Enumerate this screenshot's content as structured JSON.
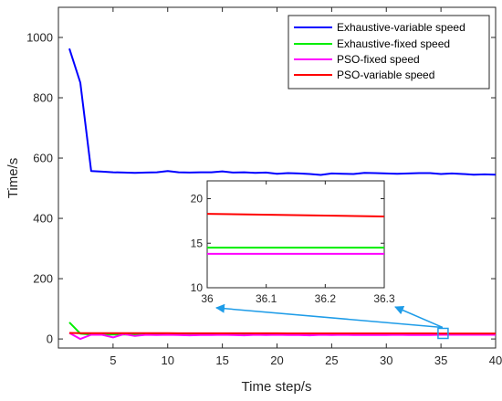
{
  "chart_data": {
    "type": "line",
    "title": "",
    "xlabel": "Time step/s",
    "ylabel": "Time/s",
    "xlim": [
      0,
      40
    ],
    "ylim": [
      -30,
      1100
    ],
    "xticks": [
      5,
      10,
      15,
      20,
      25,
      30,
      35,
      40
    ],
    "yticks": [
      0,
      200,
      400,
      600,
      800,
      1000
    ],
    "grid": false,
    "legend_position": "top-right",
    "series": [
      {
        "name": "Exhaustive-variable speed",
        "color": "#0000ff",
        "x": [
          1,
          2,
          3,
          4,
          5,
          6,
          7,
          8,
          9,
          10,
          11,
          12,
          13,
          14,
          15,
          16,
          17,
          18,
          19,
          20,
          21,
          22,
          23,
          24,
          25,
          26,
          27,
          28,
          29,
          30,
          31,
          32,
          33,
          34,
          35,
          36,
          37,
          38,
          39,
          40
        ],
        "values": [
          963,
          850,
          557,
          555,
          553,
          552,
          551,
          552,
          553,
          557,
          553,
          552,
          553,
          553,
          556,
          552,
          553,
          551,
          552,
          548,
          550,
          549,
          547,
          544,
          549,
          548,
          547,
          551,
          550,
          549,
          548,
          549,
          550,
          550,
          547,
          549,
          547,
          545,
          546,
          545
        ]
      },
      {
        "name": "Exhaustive-fixed speed",
        "color": "#00ee00",
        "x": [
          1,
          2,
          3,
          4,
          5,
          6,
          7,
          8,
          9,
          10,
          11,
          12,
          13,
          14,
          15,
          16,
          17,
          18,
          19,
          20,
          21,
          22,
          23,
          24,
          25,
          26,
          27,
          28,
          29,
          30,
          31,
          32,
          33,
          34,
          35,
          36,
          37,
          38,
          39,
          40
        ],
        "values": [
          55,
          18,
          14.5,
          14.5,
          14.5,
          14.5,
          14.5,
          14.5,
          14.5,
          14.5,
          14.5,
          14.5,
          14.5,
          14.5,
          14.5,
          14.5,
          14.5,
          14.5,
          14.5,
          14.5,
          14.5,
          14.5,
          14.5,
          14.5,
          14.5,
          14.5,
          14.5,
          14.5,
          14.5,
          14.5,
          14.5,
          14.5,
          14.5,
          14.5,
          14.5,
          14.5,
          14.5,
          14.5,
          14.5,
          14.5
        ]
      },
      {
        "name": "PSO-fixed speed",
        "color": "#ff00ff",
        "x": [
          1,
          2,
          3,
          4,
          5,
          6,
          7,
          8,
          9,
          10,
          11,
          12,
          13,
          14,
          15,
          16,
          17,
          18,
          19,
          20,
          21,
          22,
          23,
          24,
          25,
          26,
          27,
          28,
          29,
          30,
          31,
          32,
          33,
          34,
          35,
          36,
          37,
          38,
          39,
          40
        ],
        "values": [
          20,
          0,
          14,
          14,
          5,
          16,
          10,
          14,
          13,
          14,
          13,
          12,
          13,
          13,
          14,
          13,
          12,
          14,
          13,
          14,
          13,
          13,
          12,
          14,
          13,
          14,
          13,
          13,
          13,
          13,
          14,
          13,
          13,
          13,
          14,
          13.8,
          14,
          13.8,
          13.8,
          13.8
        ]
      },
      {
        "name": "PSO-variable speed",
        "color": "#ff0000",
        "x": [
          1,
          2,
          3,
          4,
          5,
          6,
          7,
          8,
          9,
          10,
          11,
          12,
          13,
          14,
          15,
          16,
          17,
          18,
          19,
          20,
          21,
          22,
          23,
          24,
          25,
          26,
          27,
          28,
          29,
          30,
          31,
          32,
          33,
          34,
          35,
          36,
          37,
          38,
          39,
          40
        ],
        "values": [
          20,
          19,
          19,
          19,
          19,
          19,
          19,
          19,
          19,
          19,
          18.8,
          18.8,
          18.8,
          18.8,
          18.8,
          18.8,
          18.8,
          18.7,
          18.7,
          18.7,
          18.6,
          18.6,
          18.6,
          18.6,
          18.5,
          18.5,
          18.5,
          18.5,
          18.5,
          18.4,
          18.4,
          18.4,
          18.4,
          18.4,
          18.3,
          18.3,
          18.2,
          18.2,
          18.2,
          18.2
        ]
      }
    ],
    "inset": {
      "xlim": [
        36,
        36.3
      ],
      "ylim": [
        10,
        22
      ],
      "xticks": [
        "36",
        "36.1",
        "36.2",
        "36.3"
      ],
      "yticks": [
        "10",
        "15",
        "20"
      ],
      "series": [
        {
          "color": "#ff0000",
          "x": [
            36,
            36.3
          ],
          "values": [
            18.3,
            18.0
          ]
        },
        {
          "color": "#00ee00",
          "x": [
            36,
            36.3
          ],
          "values": [
            14.5,
            14.5
          ]
        },
        {
          "color": "#ff00ff",
          "x": [
            36,
            36.3
          ],
          "values": [
            13.8,
            13.8
          ]
        }
      ]
    },
    "callout_color": "#1e9ce8"
  }
}
